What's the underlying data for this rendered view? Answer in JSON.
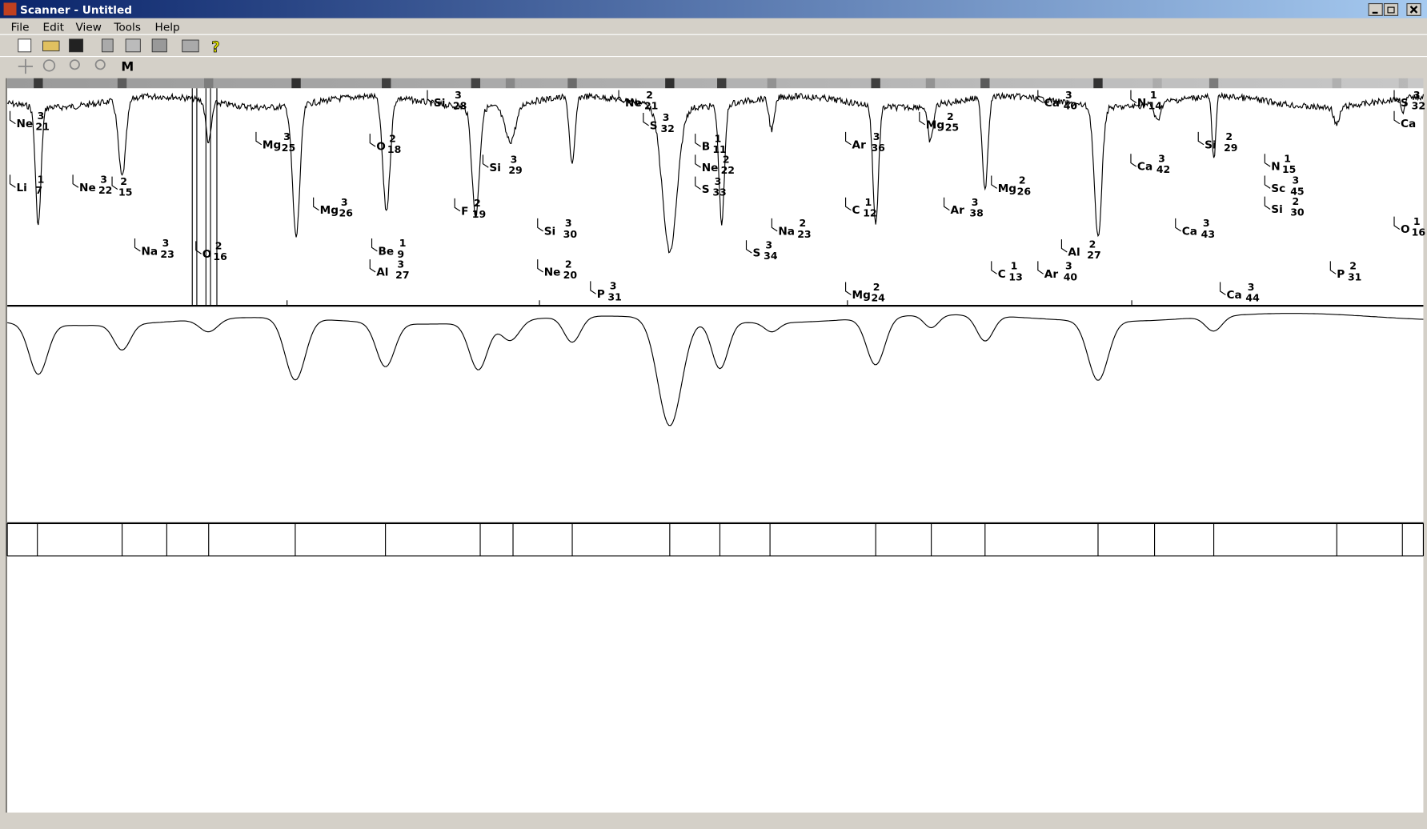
{
  "window": {
    "title": "Scanner - Untitled"
  },
  "menu": [
    "File",
    "Edit",
    "View",
    "Tools",
    "Help"
  ],
  "toolbar": {
    "mode_button": "M"
  },
  "labels": [
    {
      "el": "Ne",
      "q": "3",
      "a": "21"
    },
    {
      "el": "Li",
      "q": "1",
      "a": "7"
    },
    {
      "el": "Ne",
      "q": "3",
      "a": "22"
    },
    {
      "q": "2",
      "a": "15"
    },
    {
      "el": "Na",
      "q": "3",
      "a": "23"
    },
    {
      "el": "O",
      "q": "2",
      "a": "16"
    },
    {
      "el": "Mg",
      "q": "3",
      "a": "25"
    },
    {
      "el": "Mg",
      "q": "3",
      "a": "26"
    },
    {
      "el": "O",
      "q": "2",
      "a": "18"
    },
    {
      "el": "Be",
      "q": "1",
      "a": "9"
    },
    {
      "el": "Al",
      "q": "3",
      "a": "27"
    },
    {
      "el": "Si",
      "q": "3",
      "a": "28"
    },
    {
      "el": "F",
      "q": "2",
      "a": "19"
    },
    {
      "el": "Si",
      "q": "3",
      "a": "29"
    },
    {
      "el": "Si",
      "q": "3",
      "a": "30"
    },
    {
      "el": "Ne",
      "q": "2",
      "a": "20"
    },
    {
      "el": "P",
      "q": "3",
      "a": "31"
    },
    {
      "el": "Ne",
      "q": "2",
      "a": "21"
    },
    {
      "el": "S",
      "q": "3",
      "a": "32"
    },
    {
      "el": "B",
      "q": "1",
      "a": "11"
    },
    {
      "el": "Ne",
      "q": "2",
      "a": "22"
    },
    {
      "el": "S",
      "q": "3",
      "a": "33"
    },
    {
      "el": "S",
      "q": "3",
      "a": "34"
    },
    {
      "el": "Na",
      "q": "2",
      "a": "23"
    },
    {
      "el": "Ar",
      "q": "3",
      "a": "36"
    },
    {
      "el": "C",
      "q": "1",
      "a": "12"
    },
    {
      "el": "Mg",
      "q": "2",
      "a": "24"
    },
    {
      "el": "Mg",
      "q": "2",
      "a": "25"
    },
    {
      "el": "Ar",
      "q": "3",
      "a": "38"
    },
    {
      "el": "Mg",
      "q": "2",
      "a": "26"
    },
    {
      "el": "C",
      "q": "1",
      "a": "13"
    },
    {
      "el": "Ca",
      "q": "3",
      "a": "40"
    },
    {
      "el": "Al",
      "q": "2",
      "a": "27"
    },
    {
      "el": "Ar",
      "q": "3",
      "a": "40"
    },
    {
      "el": "N",
      "q": "1",
      "a": "14"
    },
    {
      "el": "Ca",
      "q": "3",
      "a": "42"
    },
    {
      "el": "Ca",
      "q": "3",
      "a": "43"
    },
    {
      "el": "Si",
      "q": "2",
      "a": "29"
    },
    {
      "el": "Ca",
      "q": "3",
      "a": "44"
    },
    {
      "el": "N",
      "q": "1",
      "a": "15"
    },
    {
      "el": "Sc",
      "q": "3",
      "a": "45"
    },
    {
      "el": "Si",
      "q": "2",
      "a": "30"
    },
    {
      "el": "P",
      "q": "2",
      "a": "31"
    },
    {
      "el": "S",
      "q": "3",
      "a": "32"
    },
    {
      "el": "Ca"
    },
    {
      "el": "O",
      "q": "1",
      "a": "16"
    }
  ]
}
